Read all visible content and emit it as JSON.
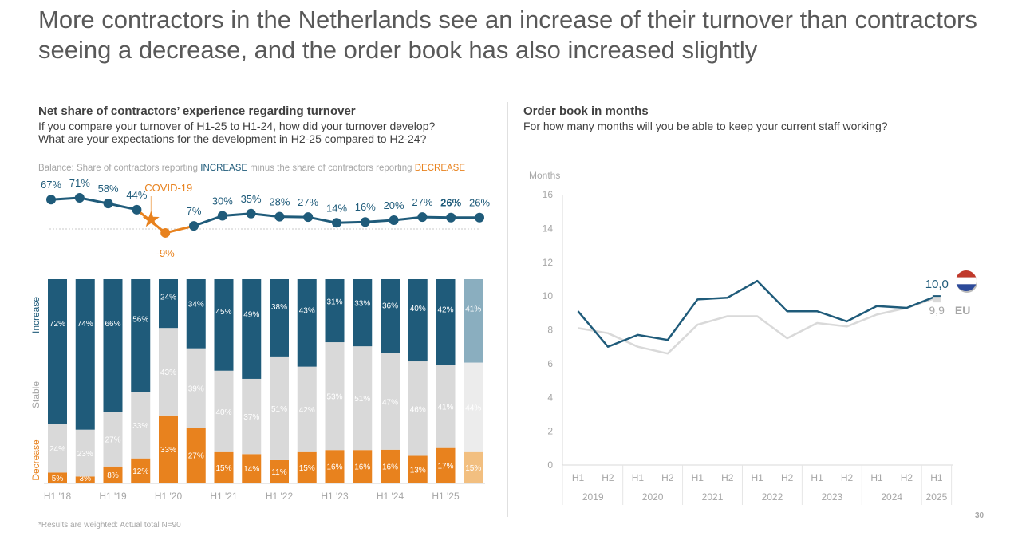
{
  "page": {
    "title": "More contractors in the Netherlands see an increase of their turnover than contractors seeing a decrease, and the order book has also increased slightly",
    "page_number": "30",
    "footnote": "*Results are weighted: Actual total N=90"
  },
  "left_panel": {
    "heading": "Net share of contractors’ experience regarding turnover",
    "question_1": "If you compare your turnover of H1-25 to H1-24, how did your turnover develop?",
    "question_2": "What are your expectations for the development in H2-25 compared to H2-24?",
    "balance_prefix": "Balance: Share of contractors reporting ",
    "balance_increase": "INCREASE",
    "balance_middle": " minus the share of contractors reporting ",
    "balance_decrease": "DECREASE"
  },
  "right_panel": {
    "heading": "Order book in months",
    "question": "For how many months will you be able to keep your current staff working?"
  },
  "colors": {
    "increase": "#1f5b7a",
    "stable": "#d9d9d9",
    "decrease": "#e8821e",
    "increase_forecast": "#8aaebf",
    "stable_forecast": "#ececec",
    "decrease_forecast": "#f2bf80",
    "eu_line": "#d9d9d9",
    "axis_text": "#a6a6a6"
  },
  "chart_data": [
    {
      "type": "line",
      "title": "Balance: Share of contractors reporting INCREASE minus the share of contractors reporting DECREASE",
      "x": [
        "H1 '18",
        "H2 '18",
        "H1 '19",
        "H2 '19",
        "H1 '20",
        "H2 '20",
        "H1 '21",
        "H2 '21",
        "H1 '22",
        "H2 '22",
        "H1 '23",
        "H2 '23",
        "H1 '24",
        "H2 '24",
        "H1 '25",
        "H2 '25"
      ],
      "values": [
        67,
        71,
        58,
        44,
        -9,
        7,
        30,
        35,
        28,
        27,
        14,
        16,
        20,
        27,
        26,
        26
      ],
      "labels": [
        "67%",
        "71%",
        "58%",
        "44%",
        "-9%",
        "7%",
        "30%",
        "35%",
        "28%",
        "27%",
        "14%",
        "16%",
        "20%",
        "27%",
        "26%",
        "26%"
      ],
      "highlight_negative_color": "#e8821e",
      "bold_label_index": 14,
      "annotation": {
        "text": "COVID-19",
        "between": [
          "H2 '19",
          "H1 '20"
        ],
        "marker": "star"
      },
      "baseline": 0
    },
    {
      "type": "bar",
      "stacked": true,
      "categories": [
        "H1 '18",
        "H2 '18",
        "H1 '19",
        "H2 '19",
        "H1 '20",
        "H2 '20",
        "H1 '21",
        "H2 '21",
        "H1 '22",
        "H2 '22",
        "H1 '23",
        "H2 '23",
        "H1 '24",
        "H2 '24",
        "H1 '25",
        "H2 '25"
      ],
      "tick_labels": [
        "H1 '18",
        "H1 '19",
        "H1 '20",
        "H1 '21",
        "H1 '22",
        "H1 '23",
        "H1 '24",
        "H1 '25"
      ],
      "series": [
        {
          "name": "Decrease",
          "values": [
            5,
            3,
            8,
            12,
            33,
            27,
            15,
            14,
            11,
            15,
            16,
            16,
            16,
            13,
            17,
            15
          ]
        },
        {
          "name": "Stable",
          "values": [
            24,
            23,
            27,
            33,
            43,
            39,
            40,
            37,
            51,
            42,
            53,
            51,
            47,
            46,
            41,
            44
          ]
        },
        {
          "name": "Increase",
          "values": [
            72,
            74,
            66,
            56,
            24,
            34,
            45,
            49,
            38,
            43,
            31,
            33,
            36,
            40,
            42,
            41
          ]
        }
      ],
      "legend": [
        "Increase",
        "Stable",
        "Decrease"
      ],
      "legend_placement": "left (rotated)",
      "forecast_last": true,
      "ylim": [
        0,
        100
      ]
    },
    {
      "type": "line",
      "title": "Order book in months",
      "ylabel": "Months",
      "ylim": [
        0,
        16
      ],
      "yticks": [
        0,
        2,
        4,
        6,
        8,
        10,
        12,
        14,
        16
      ],
      "x": [
        "H1 2019",
        "H2 2019",
        "H1 2020",
        "H2 2020",
        "H1 2021",
        "H2 2021",
        "H1 2022",
        "H2 2022",
        "H1 2023",
        "H2 2023",
        "H1 2024",
        "H2 2024",
        "H1 2025"
      ],
      "x_sub_labels": [
        "H1",
        "H2",
        "H1",
        "H2",
        "H1",
        "H2",
        "H1",
        "H2",
        "H1",
        "H2",
        "H1",
        "H2",
        "H1"
      ],
      "x_groups": [
        {
          "label": "2019",
          "span": 2
        },
        {
          "label": "2020",
          "span": 2
        },
        {
          "label": "2021",
          "span": 2
        },
        {
          "label": "2022",
          "span": 2
        },
        {
          "label": "2023",
          "span": 2
        },
        {
          "label": "2024",
          "span": 2
        },
        {
          "label": "2025",
          "span": 1
        }
      ],
      "series": [
        {
          "name": "Netherlands",
          "values": [
            9.1,
            7.0,
            7.7,
            7.4,
            9.8,
            9.9,
            10.9,
            9.1,
            9.1,
            8.5,
            9.4,
            9.3,
            10.0
          ],
          "end_label": "10,0",
          "color": "#1f5b7a"
        },
        {
          "name": "EU",
          "values": [
            8.1,
            7.8,
            7.0,
            6.6,
            8.3,
            8.8,
            8.8,
            7.5,
            8.4,
            8.2,
            8.9,
            9.3,
            9.9
          ],
          "end_label": "9,9",
          "tag": "EU",
          "color": "#d9d9d9"
        }
      ]
    }
  ]
}
